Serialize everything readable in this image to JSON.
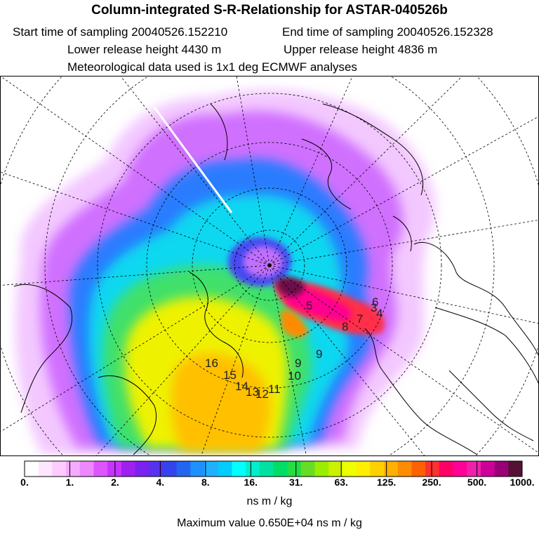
{
  "header": {
    "title": "Column-integrated S-R-Relationship for ASTAR-040526b",
    "start_label": "Start time of sampling 20040526.152210",
    "end_label": "End time of sampling 20040526.152328",
    "lower_label": "Lower release height 4430 m",
    "upper_label": "Upper release height 4836 m",
    "met_label": "Meteorological data used is 1x1 deg ECMWF analyses"
  },
  "map": {
    "projection": "polar-stereographic",
    "trajectory_labels": [
      "5",
      "8",
      "9",
      "10",
      "11",
      "12",
      "13",
      "14",
      "15",
      "16",
      "9",
      "3",
      "4",
      "6",
      "7"
    ]
  },
  "colorbar": {
    "colors": [
      "#ffffff",
      "#ffe6ff",
      "#ffccff",
      "#f5aaff",
      "#ee88ff",
      "#dd55ff",
      "#c833ff",
      "#a020f0",
      "#7a22f0",
      "#5533ee",
      "#3344ee",
      "#2266f0",
      "#1e90ff",
      "#20b0ff",
      "#00ccff",
      "#00ffff",
      "#00eecc",
      "#00e0a0",
      "#00dd66",
      "#22dd44",
      "#66dd22",
      "#99ee00",
      "#ccf000",
      "#eeff00",
      "#ffee00",
      "#ffd000",
      "#ffb000",
      "#ff8c00",
      "#ff6000",
      "#ff3030",
      "#ff0066",
      "#ff0099",
      "#ee22aa",
      "#cc0099",
      "#990077",
      "#551133"
    ],
    "tick_labels": [
      "0.",
      "1.",
      "2.",
      "4.",
      "8.",
      "16.",
      "31.",
      "63.",
      "125.",
      "250.",
      "500.",
      "1000."
    ],
    "unit": "ns m / kg"
  },
  "footer": {
    "max_value": "Maximum value  0.650E+04 ns m / kg"
  }
}
